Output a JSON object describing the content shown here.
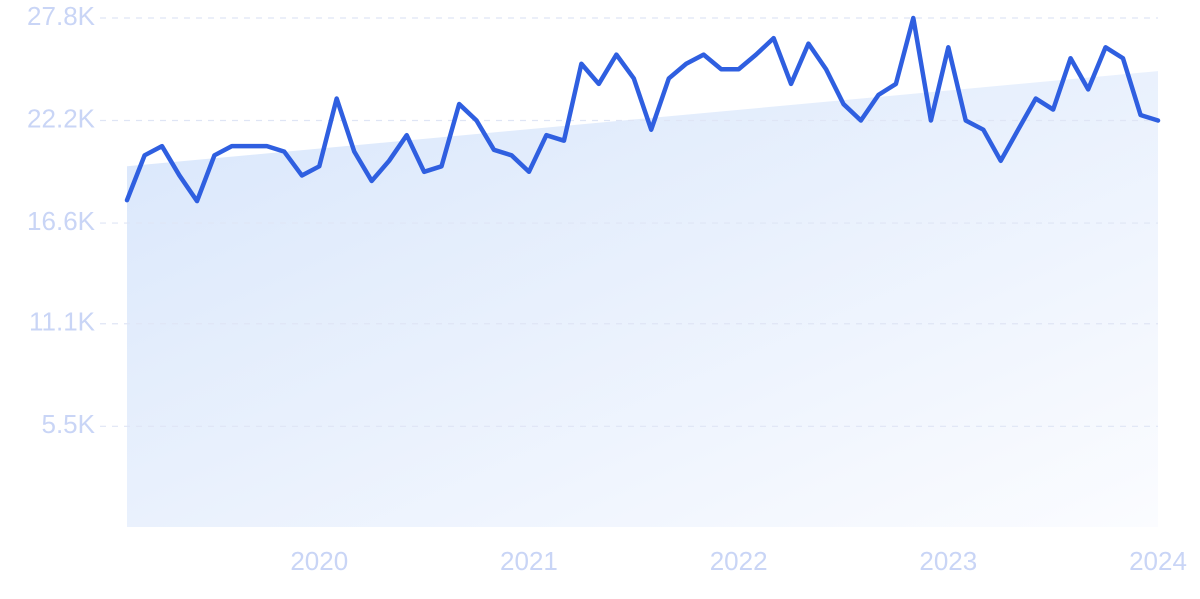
{
  "chart_data": {
    "type": "line",
    "x": [
      2019.083,
      2019.167,
      2019.25,
      2019.333,
      2019.417,
      2019.5,
      2019.583,
      2019.667,
      2019.75,
      2019.833,
      2019.917,
      2020,
      2020.083,
      2020.167,
      2020.25,
      2020.333,
      2020.417,
      2020.5,
      2020.583,
      2020.667,
      2020.75,
      2020.833,
      2020.917,
      2021,
      2021.083,
      2021.167,
      2021.25,
      2021.333,
      2021.417,
      2021.5,
      2021.583,
      2021.667,
      2021.75,
      2021.833,
      2021.917,
      2022,
      2022.083,
      2022.167,
      2022.25,
      2022.333,
      2022.417,
      2022.5,
      2022.583,
      2022.667,
      2022.75,
      2022.833,
      2022.917,
      2023,
      2023.083,
      2023.167,
      2023.25,
      2023.333,
      2023.417,
      2023.5,
      2023.583,
      2023.667,
      2023.75,
      2023.833,
      2023.917,
      2024
    ],
    "series": [
      {
        "color": "#2f5fe0",
        "values": [
          17850,
          20300,
          20800,
          19200,
          17800,
          20300,
          20800,
          20800,
          20800,
          20500,
          19200,
          19700,
          23400,
          20500,
          18900,
          20000,
          21400,
          19400,
          19700,
          23100,
          22200,
          20600,
          20300,
          19400,
          21400,
          21100,
          25300,
          24200,
          25800,
          24500,
          21700,
          24500,
          25300,
          25800,
          25000,
          25000,
          25800,
          26700,
          24200,
          26400,
          25000,
          23100,
          22200,
          23600,
          24200,
          27800,
          22200,
          26200,
          22200,
          21700,
          20000,
          21700,
          23400,
          22800,
          25600,
          23900,
          26200,
          25600,
          22500,
          22200
        ]
      }
    ],
    "trend": [
      19700,
      24900
    ],
    "xlim": [
      2019.083,
      2024
    ],
    "xticks": [
      2020,
      2021,
      2022,
      2023,
      2024
    ],
    "ylim": [
      0,
      27800
    ],
    "yticks": [
      {
        "value": 5500,
        "label": "5.5K"
      },
      {
        "value": 11100,
        "label": "11.1K"
      },
      {
        "value": 16600,
        "label": "16.6K"
      },
      {
        "value": 22200,
        "label": "22.2K"
      },
      {
        "value": 27800,
        "label": "27.8K"
      }
    ],
    "grid": true
  }
}
